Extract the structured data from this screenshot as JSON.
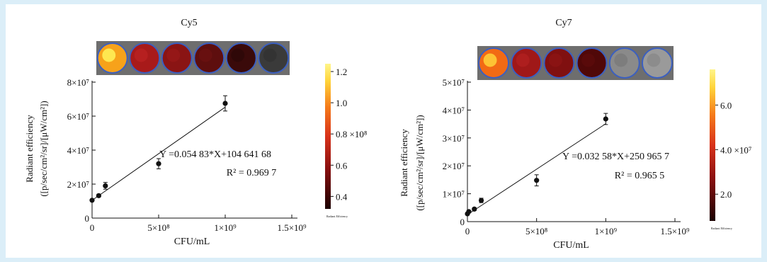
{
  "chart_data": [
    {
      "type": "scatter",
      "title": "Cy5",
      "xlabel": "CFU/mL",
      "ylabel_line1": "Radiant efficiency",
      "ylabel_line2": "([p/sec/cm²/sr]/[μW/cm²])",
      "xlim": [
        0,
        1500000000
      ],
      "ylim": [
        0,
        80000000
      ],
      "x_ticks": [
        0,
        500000000,
        1000000000,
        1500000000
      ],
      "x_tick_labels": [
        "0",
        "5×10⁸",
        "1×10⁹",
        "1.5×10⁹"
      ],
      "y_ticks": [
        0,
        20000000,
        40000000,
        60000000,
        80000000
      ],
      "y_tick_labels": [
        "0",
        "2×10⁷",
        "4×10⁷",
        "6×10⁷",
        "8×10⁷"
      ],
      "x": [
        0,
        50000000,
        100000000,
        500000000,
        1000000000
      ],
      "y": [
        10500000,
        13200000,
        19000000,
        32000000,
        67500000
      ],
      "errors": [
        500000,
        800000,
        2000000,
        3000000,
        4500000
      ],
      "fit_slope": 0.05483,
      "fit_intercept": 10464168,
      "equation": "Y =0.054 83*X+104 641 68",
      "r2": "R² = 0.969 7",
      "colorbar": {
        "ticks": [
          "1.2",
          "1.0",
          "0.8 ×10⁸",
          "0.6",
          "0.4"
        ],
        "ticks_value": [
          1.2,
          1.0,
          0.8,
          0.6,
          0.4
        ],
        "range": [
          0.32,
          1.25
        ],
        "title": "Radiant Efficiency"
      },
      "wells": [
        {
          "color": "#f7a21a",
          "core": "#fff35a"
        },
        {
          "color": "#a81a1a",
          "core": "#b82222"
        },
        {
          "color": "#8a1414",
          "core": "#961818"
        },
        {
          "color": "#5e0e0e",
          "core": "#6a1010"
        },
        {
          "color": "#3a0a0a",
          "core": "#2e0808"
        },
        {
          "color": "#3a3a3a",
          "core": "#333333"
        }
      ]
    },
    {
      "type": "scatter",
      "title": "Cy7",
      "xlabel": "CFU/mL",
      "ylabel_line1": "Radiant efficiency",
      "ylabel_line2": "([p/sec/cm²/sr]/[μW/cm²])",
      "xlim": [
        0,
        1500000000
      ],
      "ylim": [
        0,
        50000000
      ],
      "x_ticks": [
        0,
        500000000,
        1000000000,
        1500000000
      ],
      "x_tick_labels": [
        "0",
        "5×10⁸",
        "1×10⁹",
        "1.5×10⁹"
      ],
      "y_ticks": [
        0,
        10000000,
        20000000,
        30000000,
        40000000,
        50000000
      ],
      "y_tick_labels": [
        "0",
        "1×10⁷",
        "2×10⁷",
        "3×10⁷",
        "4×10⁷",
        "5×10⁷"
      ],
      "x": [
        0,
        10000000,
        50000000,
        100000000,
        500000000,
        1000000000
      ],
      "y": [
        2800000,
        3600000,
        4500000,
        7600000,
        14800000,
        36800000
      ],
      "errors": [
        300000,
        300000,
        500000,
        800000,
        2000000,
        2000000
      ],
      "fit_slope": 0.03258,
      "fit_intercept": 2509657,
      "equation": "Y =0.032 58*X+250 965 7",
      "r2": "R² = 0.965 5",
      "colorbar": {
        "ticks": [
          "6.0",
          "4.0 ×10⁷",
          "2.0"
        ],
        "ticks_value": [
          6.0,
          4.0,
          2.0
        ],
        "range": [
          0.8,
          7.6
        ],
        "title": "Radiant Efficiency"
      },
      "wells": [
        {
          "color": "#f26a14",
          "core": "#ffd23a"
        },
        {
          "color": "#a01818",
          "core": "#b02020"
        },
        {
          "color": "#801010",
          "core": "#8c1414"
        },
        {
          "color": "#500808",
          "core": "#5a0a0a"
        },
        {
          "color": "#8a8a8a",
          "core": "#7a7a7a"
        },
        {
          "color": "#9a9a9a",
          "core": "#8a8a8a"
        }
      ]
    }
  ],
  "colors": {
    "background": "#dbeef8",
    "panel": "#ffffff",
    "well_ring": "#3b5fc0"
  }
}
